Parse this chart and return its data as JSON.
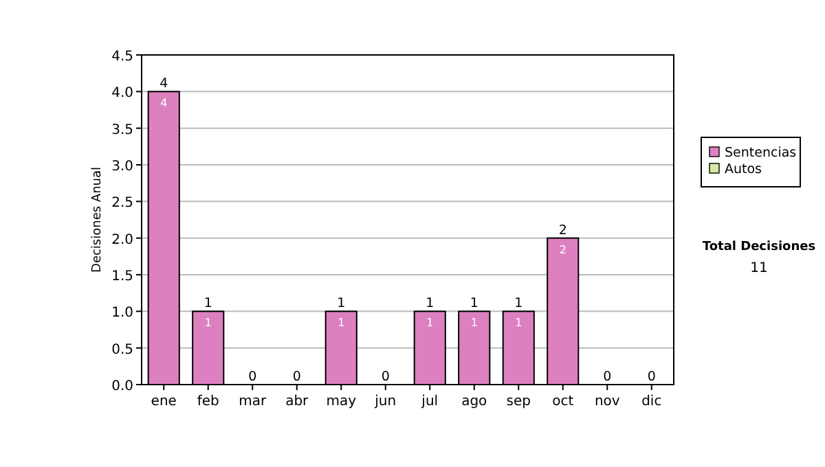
{
  "chart_data": {
    "type": "bar",
    "stacked": true,
    "ylabel": "Decisiones Anual",
    "categories": [
      "ene",
      "feb",
      "mar",
      "abr",
      "may",
      "jun",
      "jul",
      "ago",
      "sep",
      "oct",
      "nov",
      "dic"
    ],
    "series": [
      {
        "name": "Sentencias",
        "color": "#dd80c0",
        "values": [
          4,
          1,
          0,
          0,
          1,
          0,
          1,
          1,
          1,
          2,
          0,
          0
        ],
        "value_labels": [
          "4",
          "1",
          null,
          null,
          "1",
          null,
          "1",
          "1",
          "1",
          "2",
          null,
          null
        ]
      },
      {
        "name": "Autos",
        "color": "#d4e8a0",
        "values": [
          0,
          0,
          0,
          0,
          0,
          0,
          0,
          0,
          0,
          0,
          0,
          0
        ]
      }
    ],
    "totals": [
      "4",
      "1",
      "0",
      "0",
      "1",
      "0",
      "1",
      "1",
      "1",
      "2",
      "0",
      "0"
    ],
    "ylim": [
      0,
      4.5
    ],
    "yticks": [
      {
        "value": 0,
        "label": "0.0"
      },
      {
        "value": 0.5,
        "label": "0.5"
      },
      {
        "value": 1,
        "label": "1.0"
      },
      {
        "value": 1.5,
        "label": "1.5"
      },
      {
        "value": 2,
        "label": "2.0"
      },
      {
        "value": 2.5,
        "label": "2.5"
      },
      {
        "value": 3,
        "label": "3.0"
      },
      {
        "value": 3.5,
        "label": "3.5"
      },
      {
        "value": 4,
        "label": "4.0"
      },
      {
        "value": 4.5,
        "label": "4.5"
      }
    ],
    "grid": "y",
    "legend": "right",
    "annotations": [
      "Total Decisiones",
      "11"
    ]
  }
}
